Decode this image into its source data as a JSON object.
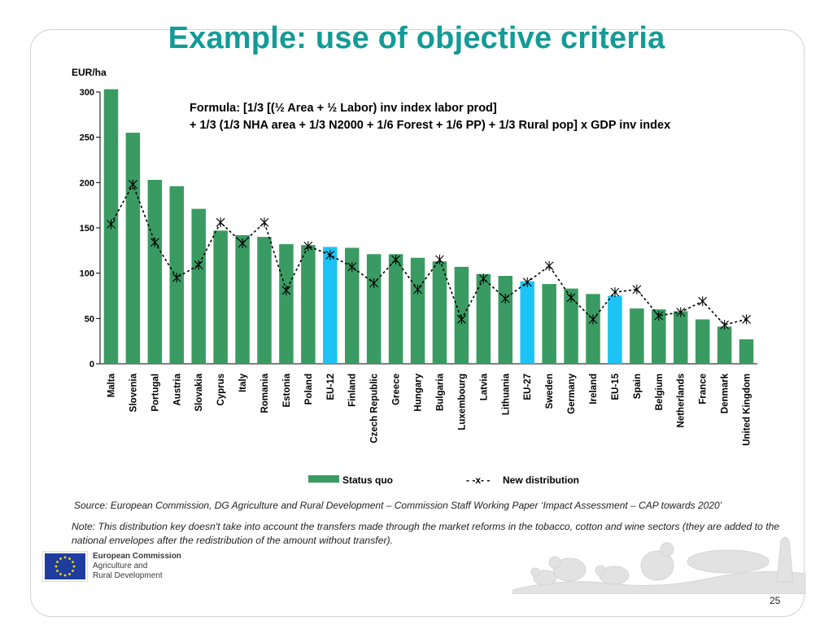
{
  "slide": {
    "title": "Example: use of objective criteria",
    "page_number": "25"
  },
  "formula": {
    "line1": "Formula: [1/3 [(½ Area + ½ Labor) inv index labor prod]",
    "line2": "+ 1/3 (1/3 NHA area + 1/3 N2000 + 1/6 Forest + 1/6 PP) + 1/3 Rural pop] x GDP inv index"
  },
  "source": "Source: European Commission, DG Agriculture and Rural Development – Commission Staff Working Paper ‘Impact Assessment – CAP towards 2020’",
  "note": "Note: This distribution key doesn't take into account the transfers made through the market reforms in the tobacco, cotton and wine sectors (they are added to the national envelopes after the redistribution of the amount without transfer).",
  "logo": {
    "line1": "European Commission",
    "line2": "Agriculture and",
    "line3": "Rural Development"
  },
  "colors": {
    "title": "#139b96",
    "bar_status_quo": "#3a9b62",
    "bar_eu_aggregate": "#1cc3f4",
    "new_distribution_line": "#000000"
  },
  "chart_data": {
    "type": "bar",
    "ylabel": "EUR/ha",
    "ylim": [
      0,
      300
    ],
    "yticks": [
      0,
      50,
      100,
      150,
      200,
      250,
      300
    ],
    "grid": false,
    "legend_position": "bottom",
    "categories": [
      "Malta",
      "Slovenia",
      "Portugal",
      "Austria",
      "Slovakia",
      "Cyprus",
      "Italy",
      "Romania",
      "Estonia",
      "Poland",
      "EU-12",
      "Finland",
      "Czech Republic",
      "Greece",
      "Hungary",
      "Bulgaria",
      "Luxembourg",
      "Latvia",
      "Lithuania",
      "EU-27",
      "Sweden",
      "Germany",
      "Ireland",
      "EU-15",
      "Spain",
      "Belgium",
      "Netherlands",
      "France",
      "Denmark",
      "United Kingdom"
    ],
    "highlighted_categories": [
      "EU-12",
      "EU-27",
      "EU-15"
    ],
    "series": [
      {
        "name": "Status quo",
        "type": "bar",
        "values": [
          303,
          255,
          203,
          196,
          171,
          147,
          142,
          140,
          132,
          131,
          129,
          128,
          121,
          121,
          117,
          113,
          107,
          99,
          97,
          91,
          88,
          83,
          77,
          75,
          61,
          60,
          58,
          49,
          41,
          27
        ]
      },
      {
        "name": "New distribution",
        "type": "line",
        "values": [
          154,
          198,
          134,
          95,
          109,
          156,
          133,
          156,
          81,
          130,
          120,
          107,
          89,
          115,
          82,
          115,
          49,
          94,
          72,
          90,
          108,
          73,
          49,
          79,
          82,
          53,
          57,
          69,
          43,
          49
        ]
      }
    ]
  }
}
